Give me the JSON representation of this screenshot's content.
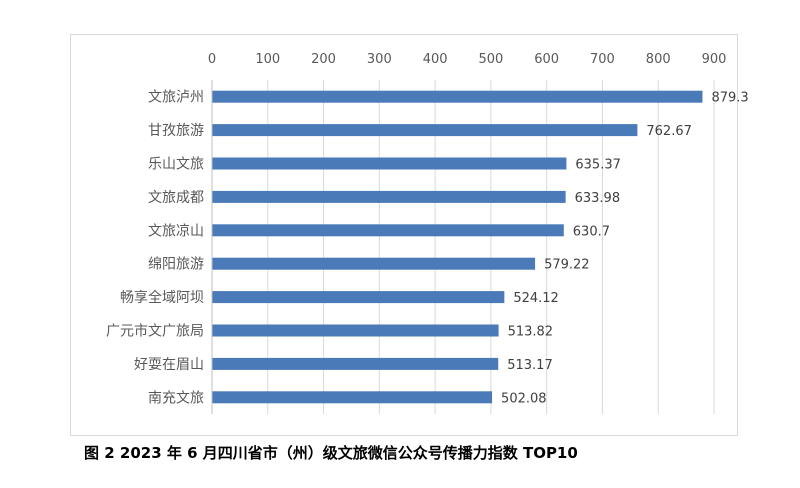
{
  "chart_data": {
    "type": "bar",
    "orientation": "horizontal",
    "categories": [
      "文旅泸州",
      "甘孜旅游",
      "乐山文旅",
      "文旅成都",
      "文旅凉山",
      "绵阳旅游",
      "畅享全域阿坝",
      "广元市文广旅局",
      "好耍在眉山",
      "南充文旅"
    ],
    "values": [
      879.3,
      762.67,
      635.37,
      633.98,
      630.7,
      579.22,
      524.12,
      513.82,
      513.17,
      502.08
    ],
    "value_labels": [
      "879.3",
      "762.67",
      "635.37",
      "633.98",
      "630.7",
      "579.22",
      "524.12",
      "513.82",
      "513.17",
      "502.08"
    ],
    "xlim": [
      0,
      900
    ],
    "xticks": [
      "0",
      "100",
      "200",
      "300",
      "400",
      "500",
      "600",
      "700",
      "800",
      "900"
    ],
    "x_axis_position": "top",
    "grid": "vertical",
    "legend": "none",
    "bar_color": "#4a7ab8",
    "grid_color": "#d9d9d9",
    "caption": "图 2   2023 年 6 月四川省市（州）级文旅微信公众号传播力指数 TOP10"
  }
}
